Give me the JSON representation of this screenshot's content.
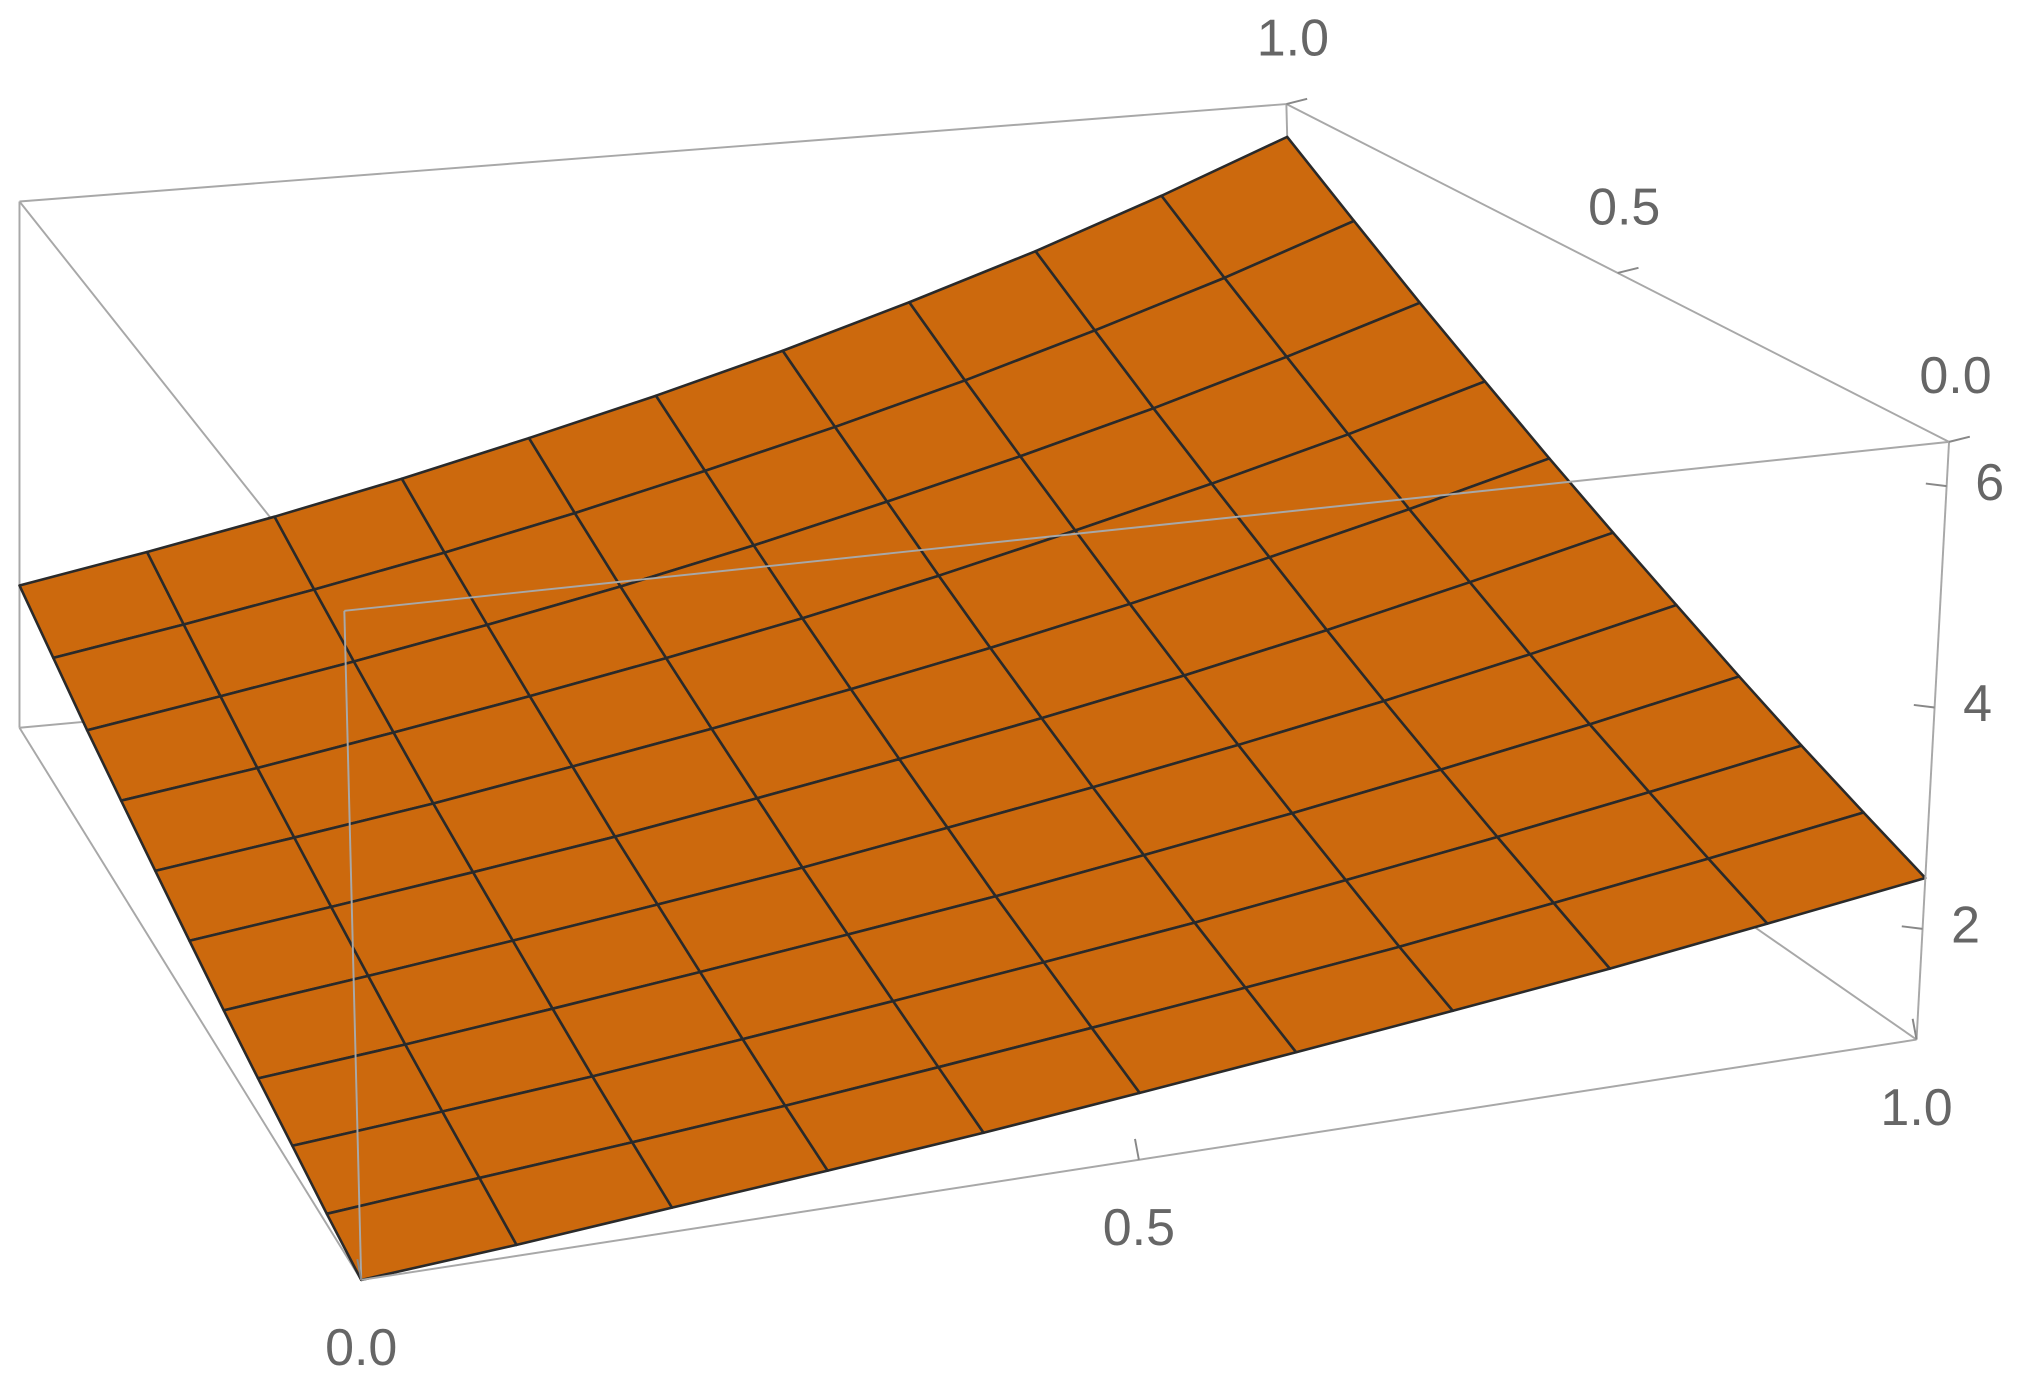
{
  "chart_data": {
    "type": "surface3d",
    "x": [
      0,
      0.1,
      0.2,
      0.3,
      0.4,
      0.5,
      0.6,
      0.7,
      0.8,
      0.9,
      1
    ],
    "y": [
      0,
      0.1,
      0.2,
      0.3,
      0.4,
      0.5,
      0.6,
      0.7,
      0.8,
      0.9,
      1
    ],
    "z": [
      [
        1,
        1.09,
        1.2,
        1.31,
        1.43,
        1.57,
        1.72,
        1.88,
        2.05,
        2.25,
        2.46
      ],
      [
        1.09,
        1.2,
        1.31,
        1.43,
        1.57,
        1.72,
        1.88,
        2.05,
        2.25,
        2.46,
        2.69
      ],
      [
        1.2,
        1.31,
        1.43,
        1.57,
        1.72,
        1.88,
        2.05,
        2.25,
        2.46,
        2.69,
        2.94
      ],
      [
        1.31,
        1.43,
        1.57,
        1.72,
        1.88,
        2.05,
        2.25,
        2.46,
        2.69,
        2.94,
        3.22
      ],
      [
        1.43,
        1.57,
        1.72,
        1.88,
        2.05,
        2.25,
        2.46,
        2.69,
        2.94,
        3.22,
        3.53
      ],
      [
        1.57,
        1.72,
        1.88,
        2.05,
        2.25,
        2.46,
        2.69,
        2.94,
        3.22,
        3.53,
        3.86
      ],
      [
        1.72,
        1.88,
        2.05,
        2.25,
        2.46,
        2.69,
        2.94,
        3.22,
        3.53,
        3.86,
        4.22
      ],
      [
        1.88,
        2.05,
        2.25,
        2.46,
        2.69,
        2.94,
        3.22,
        3.53,
        3.86,
        4.22,
        4.62
      ],
      [
        2.05,
        2.25,
        2.46,
        2.69,
        2.94,
        3.22,
        3.53,
        3.86,
        4.22,
        4.62,
        5.05
      ],
      [
        2.25,
        2.46,
        2.69,
        2.94,
        3.22,
        3.53,
        3.86,
        4.22,
        4.62,
        5.05,
        5.53
      ],
      [
        2.46,
        2.69,
        2.94,
        3.22,
        3.53,
        3.86,
        4.22,
        4.62,
        5.05,
        5.53,
        6.05
      ]
    ],
    "xlim": [
      0,
      1
    ],
    "ylim": [
      0,
      1
    ],
    "zlim": [
      1,
      6.4
    ],
    "xticks": [
      {
        "value": 0,
        "label": "0.0"
      },
      0.5,
      {
        "value": 1,
        "label": "1.0"
      }
    ],
    "yticks": [
      {
        "value": 0,
        "label": "0.0"
      },
      0.5,
      {
        "value": 1,
        "label": "1.0"
      }
    ],
    "zticks": [
      2,
      4,
      6
    ],
    "color": "#cc690d",
    "mesh_color": "#2a2a2a"
  }
}
